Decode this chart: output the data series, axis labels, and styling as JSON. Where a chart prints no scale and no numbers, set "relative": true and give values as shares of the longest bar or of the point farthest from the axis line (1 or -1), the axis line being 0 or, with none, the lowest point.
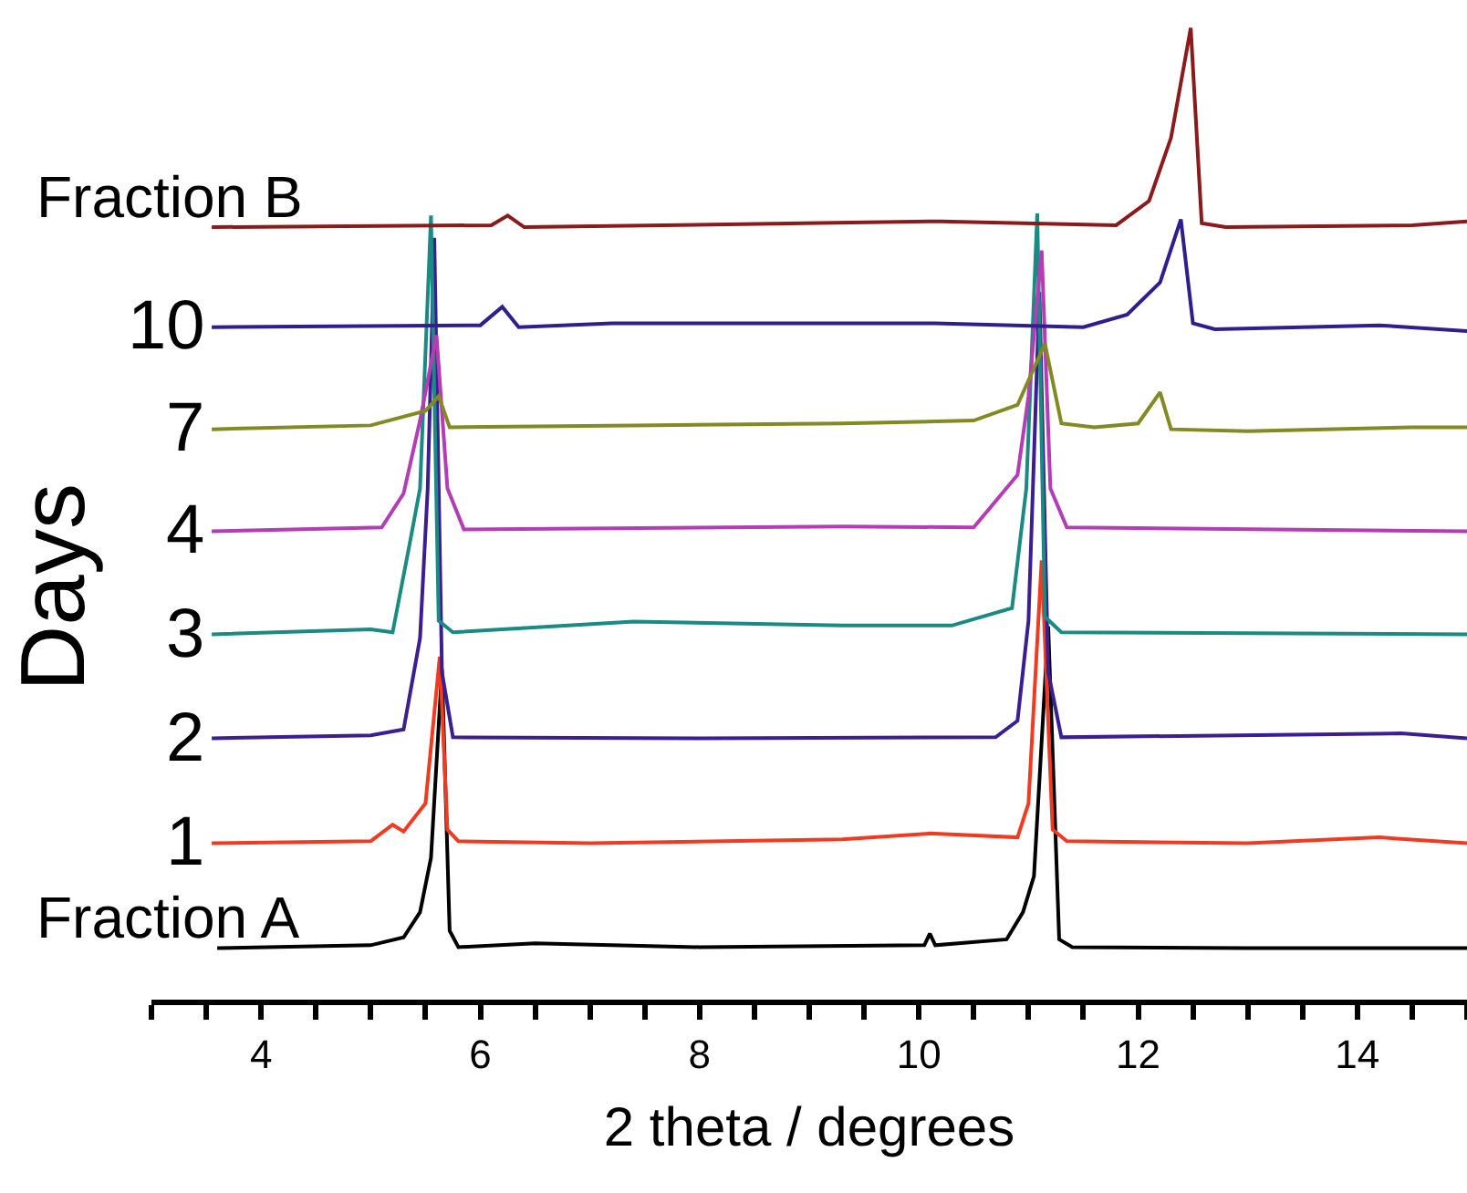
{
  "chart_data": {
    "type": "line",
    "relative": true,
    "xlabel": "2 theta / degrees",
    "ylabel": "Days",
    "xlim": [
      3,
      15
    ],
    "xticks": [
      {
        "value": 3,
        "label": null
      },
      {
        "value": 3.5,
        "label": null
      },
      4,
      {
        "value": 4.5,
        "label": null
      },
      {
        "value": 5,
        "label": null
      },
      {
        "value": 5.5,
        "label": null
      },
      6,
      {
        "value": 6.5,
        "label": null
      },
      {
        "value": 7,
        "label": null
      },
      {
        "value": 7.5,
        "label": null
      },
      8,
      {
        "value": 8.5,
        "label": null
      },
      {
        "value": 9,
        "label": null
      },
      {
        "value": 9.5,
        "label": null
      },
      10,
      {
        "value": 10.5,
        "label": null
      },
      {
        "value": 11,
        "label": null
      },
      {
        "value": 11.5,
        "label": null
      },
      12,
      {
        "value": 12.5,
        "label": null
      },
      {
        "value": 13,
        "label": null
      },
      {
        "value": 13.5,
        "label": null
      },
      14,
      {
        "value": 14.5,
        "label": null
      },
      {
        "value": 15,
        "label": null
      }
    ],
    "line_style": "solid",
    "series": [
      {
        "name": "Fraction B",
        "color": "#8b1a1a",
        "x": [
          3.55,
          6.1,
          6.25,
          6.4,
          10.2,
          11.8,
          12.1,
          12.3,
          12.48,
          12.58,
          12.8,
          14.5,
          15
        ],
        "values": [
          0.795,
          0.797,
          0.807,
          0.795,
          0.801,
          0.797,
          0.822,
          0.887,
          1,
          0.799,
          0.795,
          0.797,
          0.801
        ]
      },
      {
        "name": "10",
        "color": "#2e1e8e",
        "x": [
          3.55,
          6.0,
          6.2,
          6.35,
          7.2,
          10.15,
          11.5,
          11.9,
          12.2,
          12.39,
          12.5,
          12.7,
          14.2,
          15
        ],
        "values": [
          0.692,
          0.694,
          0.713,
          0.692,
          0.696,
          0.696,
          0.692,
          0.705,
          0.738,
          0.803,
          0.696,
          0.69,
          0.694,
          0.688
        ]
      },
      {
        "name": "7",
        "color": "#838a23",
        "x": [
          3.55,
          5.0,
          5.5,
          5.62,
          5.72,
          7.4,
          9.3,
          10.5,
          10.9,
          11.15,
          11.3,
          11.6,
          12.0,
          12.2,
          12.3,
          13,
          14.5,
          15
        ],
        "values": [
          0.587,
          0.591,
          0.606,
          0.621,
          0.589,
          0.591,
          0.593,
          0.596,
          0.612,
          0.675,
          0.593,
          0.589,
          0.593,
          0.625,
          0.587,
          0.585,
          0.589,
          0.589
        ]
      },
      {
        "name": "4",
        "color": "#b43cb4",
        "x": [
          3.55,
          5.1,
          5.3,
          5.45,
          5.6,
          5.7,
          5.85,
          9.3,
          10.5,
          10.9,
          11.0,
          11.12,
          11.2,
          11.35,
          15
        ],
        "values": [
          0.482,
          0.486,
          0.521,
          0.596,
          0.684,
          0.526,
          0.484,
          0.487,
          0.486,
          0.54,
          0.621,
          0.771,
          0.526,
          0.486,
          0.482
        ]
      },
      {
        "name": "3",
        "color": "#1a8a82",
        "x": [
          3.55,
          5.0,
          5.2,
          5.35,
          5.45,
          5.55,
          5.62,
          5.75,
          7.4,
          9.3,
          10.3,
          10.85,
          10.98,
          11.08,
          11.15,
          11.3,
          15
        ],
        "values": [
          0.376,
          0.381,
          0.378,
          0.466,
          0.526,
          0.807,
          0.39,
          0.378,
          0.389,
          0.385,
          0.385,
          0.403,
          0.526,
          0.809,
          0.394,
          0.378,
          0.376
        ]
      },
      {
        "name": "2",
        "color": "#3b1e91",
        "x": [
          3.55,
          5.0,
          5.3,
          5.45,
          5.52,
          5.58,
          5.65,
          5.75,
          8,
          10.7,
          10.9,
          11.0,
          11.1,
          11.18,
          11.3,
          14.4,
          15
        ],
        "values": [
          0.269,
          0.272,
          0.278,
          0.372,
          0.526,
          0.784,
          0.337,
          0.27,
          0.269,
          0.27,
          0.287,
          0.39,
          0.728,
          0.337,
          0.27,
          0.274,
          0.269
        ]
      },
      {
        "name": "1",
        "color": "#ee3b22",
        "x": [
          3.55,
          5.0,
          5.2,
          5.3,
          5.5,
          5.63,
          5.7,
          5.8,
          7,
          9.3,
          10.1,
          10.9,
          11.0,
          11.12,
          11.22,
          11.35,
          13,
          14.2,
          15
        ],
        "values": [
          0.161,
          0.163,
          0.18,
          0.173,
          0.202,
          0.353,
          0.175,
          0.163,
          0.161,
          0.165,
          0.171,
          0.167,
          0.202,
          0.452,
          0.175,
          0.163,
          0.161,
          0.167,
          0.161
        ]
      },
      {
        "name": "Fraction A",
        "color": "#000000",
        "x": [
          3.6,
          5.0,
          5.3,
          5.45,
          5.55,
          5.65,
          5.72,
          5.8,
          6.5,
          8,
          10.05,
          10.1,
          10.15,
          10.8,
          10.95,
          11.05,
          11.18,
          11.28,
          11.4,
          13,
          15
        ],
        "values": [
          0.053,
          0.056,
          0.064,
          0.09,
          0.146,
          0.34,
          0.071,
          0.054,
          0.058,
          0.054,
          0.056,
          0.068,
          0.056,
          0.062,
          0.09,
          0.127,
          0.384,
          0.062,
          0.054,
          0.053,
          0.053
        ]
      }
    ]
  }
}
